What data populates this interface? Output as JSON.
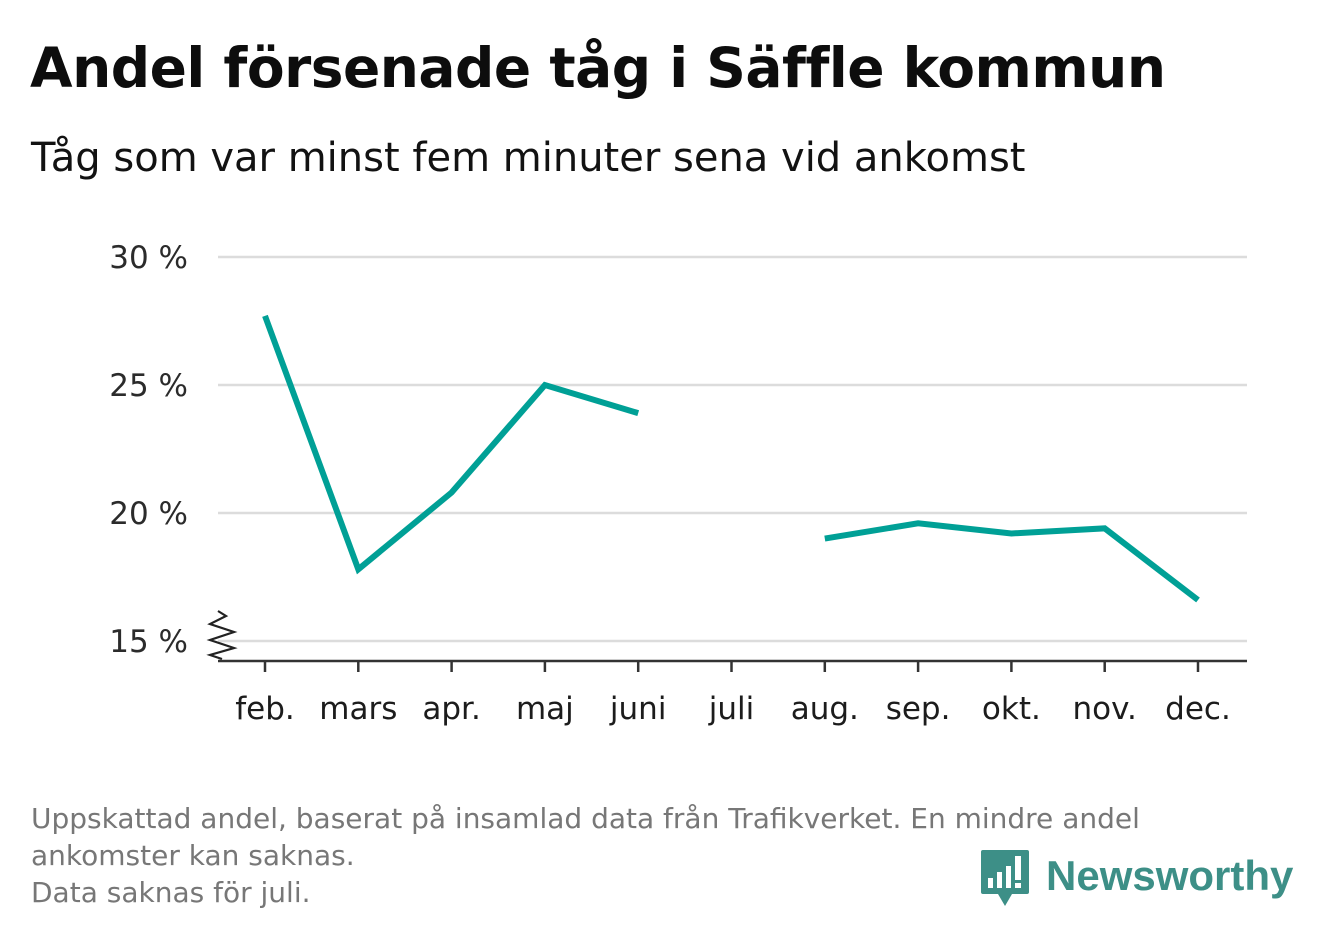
{
  "title": "Andel försenade tåg i Säffle kommun",
  "subtitle": "Tåg som var minst fem minuter sena vid ankomst",
  "footnote": {
    "lines": [
      "Uppskattad andel, baserat på insamlad data från Trafikverket. En mindre andel",
      "ankomster kan saknas.",
      "Data saknas för juli."
    ]
  },
  "brand": {
    "name": "Newsworthy",
    "icon": "bar-chart-speech-bubble-icon",
    "color": "#3d8f87"
  },
  "chart_data": {
    "type": "line",
    "categories": [
      "feb.",
      "mars",
      "apr.",
      "maj",
      "juni",
      "juli",
      "aug.",
      "sep.",
      "okt.",
      "nov.",
      "dec."
    ],
    "series": [
      {
        "values": [
          27.7,
          17.8,
          20.8,
          25.0,
          23.9,
          null,
          19.0,
          19.6,
          19.2,
          19.4,
          16.6
        ],
        "color": "#00a096"
      }
    ],
    "y_ticks": [
      {
        "value": 15,
        "label": "15 %"
      },
      {
        "value": 20,
        "label": "20 %"
      },
      {
        "value": 25,
        "label": "25 %"
      },
      {
        "value": 30,
        "label": "30 %"
      }
    ],
    "ylim": [
      15,
      30
    ],
    "y_axis_break": true,
    "grid": true,
    "xlabel": "",
    "ylabel": ""
  }
}
